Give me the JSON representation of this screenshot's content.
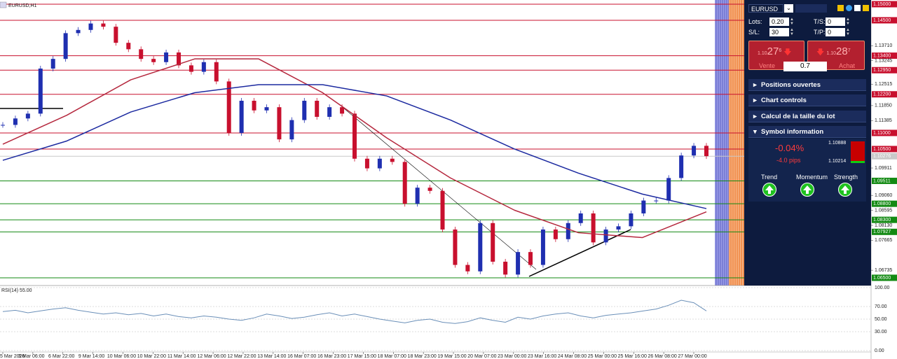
{
  "window": {
    "title": "EURUSD,H1"
  },
  "price_chart": {
    "type": "candlestick",
    "ylim": [
      1.0626,
      1.1513
    ],
    "yticks": [
      {
        "value": 1.15,
        "label": "1.15000",
        "color": "#c8102e"
      },
      {
        "value": 1.145,
        "label": "1.14500",
        "color": "#c8102e"
      },
      {
        "value": 1.1371,
        "label": "1.13710"
      },
      {
        "value": 1.134,
        "label": "1.13400",
        "color": "#c8102e"
      },
      {
        "value": 1.13245,
        "label": "1.13245"
      },
      {
        "value": 1.1295,
        "label": "1.12950",
        "color": "#c8102e"
      },
      {
        "value": 1.12515,
        "label": "1.12515"
      },
      {
        "value": 1.122,
        "label": "1.12200",
        "color": "#c8102e"
      },
      {
        "value": 1.1185,
        "label": "1.11850"
      },
      {
        "value": 1.11385,
        "label": "1.11385"
      },
      {
        "value": 1.11,
        "label": "1.11000",
        "color": "#c8102e"
      },
      {
        "value": 1.105,
        "label": "1.10500",
        "color": "#c8102e"
      },
      {
        "value": 1.10276,
        "label": "1.10276",
        "color": "#c9c9c9"
      },
      {
        "value": 1.09911,
        "label": "1.09911"
      },
      {
        "value": 1.09511,
        "label": "1.09511",
        "color": "#138a13"
      },
      {
        "value": 1.0906,
        "label": "1.09060"
      },
      {
        "value": 1.088,
        "label": "1.08800",
        "color": "#138a13"
      },
      {
        "value": 1.08595,
        "label": "1.08595"
      },
      {
        "value": 1.083,
        "label": "1.08300",
        "color": "#138a13"
      },
      {
        "value": 1.0813,
        "label": "1.08130"
      },
      {
        "value": 1.07927,
        "label": "1.07927",
        "color": "#138a13"
      },
      {
        "value": 1.07665,
        "label": "1.07665"
      },
      {
        "value": 1.06735,
        "label": "1.06735"
      },
      {
        "value": 1.065,
        "label": "1.06500",
        "color": "#138a13"
      }
    ],
    "values": [
      1.1125,
      1.1145,
      1.116,
      1.13,
      1.133,
      1.141,
      1.142,
      1.144,
      1.143,
      1.138,
      1.136,
      1.133,
      1.132,
      1.135,
      1.131,
      1.129,
      1.132,
      1.126,
      1.11,
      1.12,
      1.117,
      1.118,
      1.108,
      1.114,
      1.12,
      1.115,
      1.118,
      1.116,
      1.102,
      1.099,
      1.102,
      1.101,
      1.088,
      1.093,
      1.092,
      1.08,
      1.069,
      1.067,
      1.082,
      1.07,
      1.066,
      1.073,
      1.069,
      1.08,
      1.077,
      1.082,
      1.085,
      1.076,
      1.08,
      1.081,
      1.085,
      1.089,
      1.089,
      1.096,
      1.103,
      1.106,
      1.1028
    ],
    "up_color": "#1f2fb0",
    "down_color": "#c8102e",
    "series": [
      {
        "color": "#b5283e",
        "values": [
          1.1065,
          1.1155,
          1.1265,
          1.133,
          1.133,
          1.1225,
          1.1085,
          1.096,
          1.086,
          1.079,
          1.0775,
          1.0855
        ]
      },
      {
        "color": "#1c2aa0",
        "values": [
          1.1015,
          1.1075,
          1.1165,
          1.1225,
          1.125,
          1.125,
          1.1215,
          1.114,
          1.105,
          1.0975,
          1.091,
          1.0865
        ]
      }
    ]
  },
  "rsi": {
    "label": "RSI(14) 55.00",
    "ylim": [
      0,
      100
    ],
    "yticks": [
      {
        "value": 100,
        "label": "100.00"
      },
      {
        "value": 70,
        "label": "70.00"
      },
      {
        "value": 50,
        "label": "50.00"
      },
      {
        "value": 30,
        "label": "30.00"
      },
      {
        "value": 0,
        "label": "0.00"
      }
    ],
    "color": "#6a8fb8",
    "values": [
      62,
      64,
      60,
      63,
      66,
      68,
      64,
      61,
      58,
      60,
      57,
      59,
      55,
      58,
      54,
      52,
      55,
      53,
      50,
      48,
      52,
      58,
      55,
      51,
      53,
      57,
      60,
      55,
      58,
      54,
      50,
      47,
      44,
      48,
      50,
      45,
      43,
      46,
      52,
      48,
      45,
      53,
      50,
      55,
      58,
      60,
      55,
      52,
      56,
      58,
      60,
      63,
      66,
      72,
      80,
      76,
      63
    ]
  },
  "time_axis": {
    "labels": [
      "5 Mar 2020",
      "6 Mar 06:00",
      "6 Mar 22:00",
      "9 Mar 14:00",
      "10 Mar 06:00",
      "10 Mar 22:00",
      "11 Mar 14:00",
      "12 Mar 06:00",
      "12 Mar 22:00",
      "13 Mar 14:00",
      "16 Mar 07:00",
      "16 Mar 23:00",
      "17 Mar 15:00",
      "18 Mar 07:00",
      "18 Mar 23:00",
      "19 Mar 15:00",
      "20 Mar 07:00",
      "23 Mar 00:00",
      "23 Mar 16:00",
      "24 Mar 08:00",
      "25 Mar 00:00",
      "25 Mar 16:00",
      "26 Mar 08:00",
      "27 Mar 00:00"
    ]
  },
  "panel": {
    "symbol": "EURUSD",
    "lots_label": "Lots:",
    "lots": "0.20",
    "ts_label": "T/S:",
    "ts": "0",
    "sl_label": "S/L:",
    "sl": "30",
    "tp_label": "T/P:",
    "tp": "0",
    "sell": {
      "prefix": "1.10",
      "big": "27",
      "small": "6",
      "label": "Vente"
    },
    "buy": {
      "prefix": "1.10",
      "big": "28",
      "small": "7",
      "label": "Achat"
    },
    "spread": "0.7",
    "sections": [
      "Positions ouvertes",
      "Chart controls",
      "Calcul de la taille du lot",
      "Symbol information"
    ],
    "info": {
      "change": "-0.04%",
      "pips": "-4.0 pips",
      "high": "1.10888",
      "low": "1.10214",
      "indicators": [
        "Trend",
        "Momentum",
        "Strength"
      ]
    }
  }
}
